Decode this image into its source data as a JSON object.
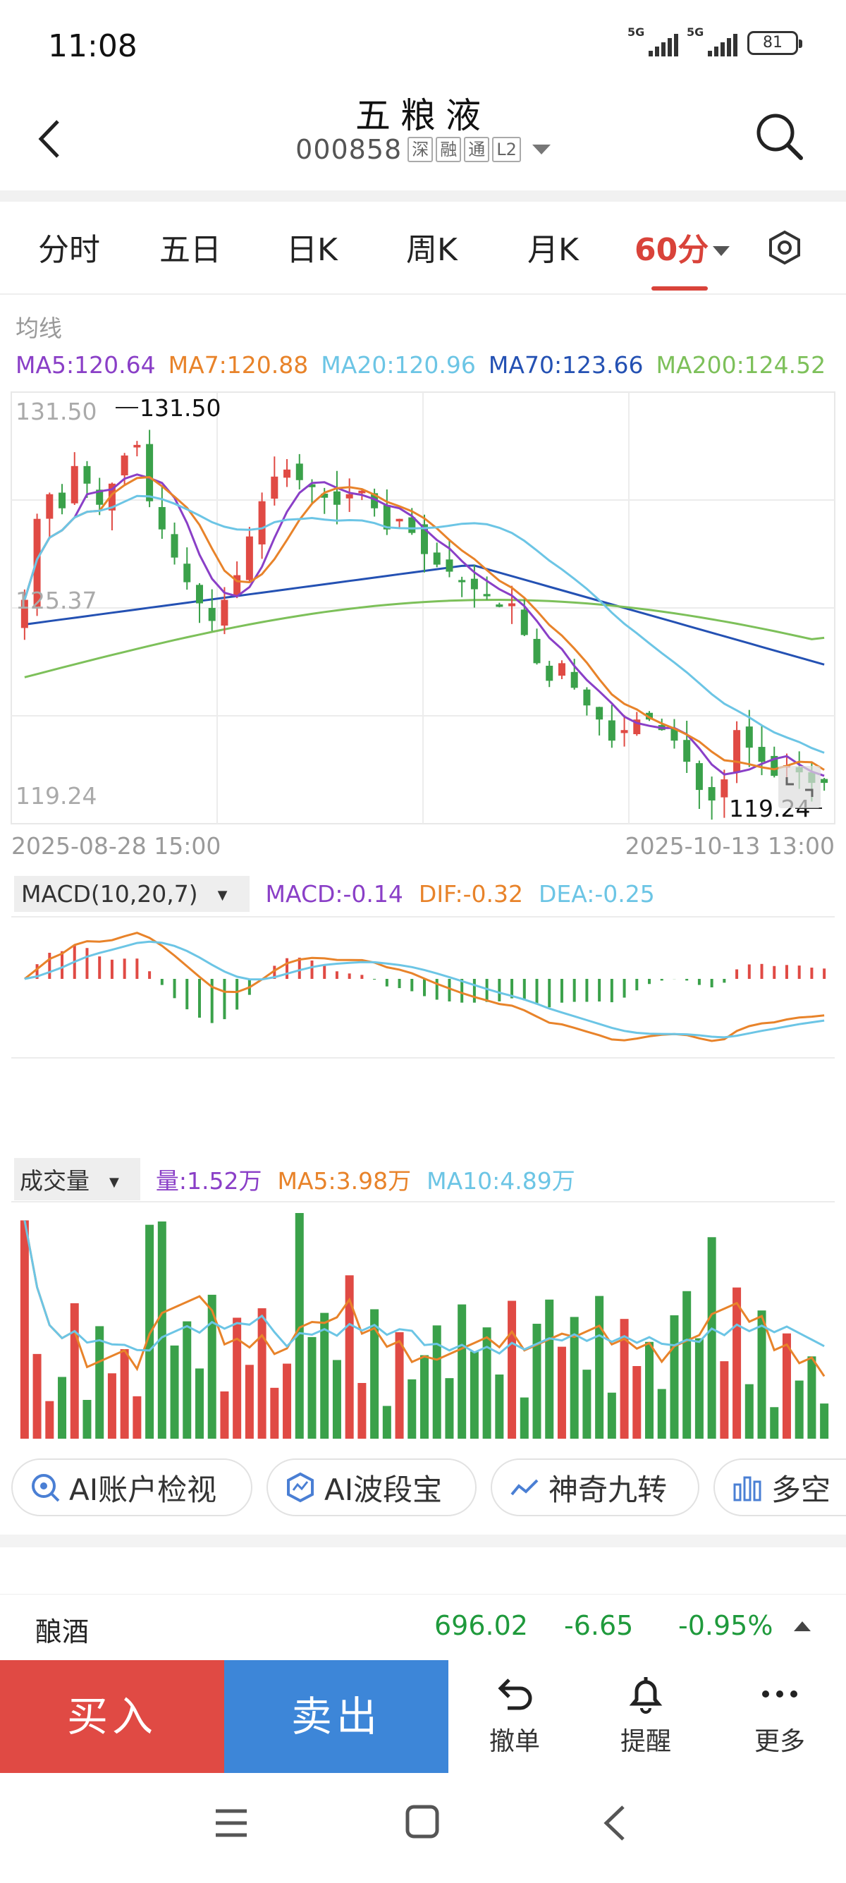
{
  "status_bar": {
    "time": "11:08",
    "network1": "5G",
    "network2": "5G",
    "battery": "81"
  },
  "header": {
    "title": "五粮液",
    "code": "000858",
    "tags": [
      "深",
      "融",
      "通",
      "L2"
    ]
  },
  "tabs": [
    {
      "label": "分时",
      "active": false
    },
    {
      "label": "五日",
      "active": false
    },
    {
      "label": "日K",
      "active": false
    },
    {
      "label": "周K",
      "active": false
    },
    {
      "label": "月K",
      "active": false
    },
    {
      "label": "60分",
      "active": true
    }
  ],
  "ma_legend": {
    "title": "均线",
    "items": [
      {
        "label": "MA5:120.64",
        "color": "#8a3fc7"
      },
      {
        "label": "MA7:120.88",
        "color": "#e8832a"
      },
      {
        "label": "MA20:120.96",
        "color": "#6cc5e5"
      },
      {
        "label": "MA70:123.66",
        "color": "#2451b3"
      },
      {
        "label": "MA200:124.52",
        "color": "#7dc05a"
      }
    ]
  },
  "price_axis": {
    "high": "131.50",
    "mid": "125.37",
    "low": "119.24",
    "high_marker": "131.50",
    "low_marker": "119.24"
  },
  "date_range": {
    "start": "2025-08-28 15:00",
    "end": "2025-10-13 13:00"
  },
  "macd": {
    "selector": "MACD(10,20,7)",
    "macd": "MACD:-0.14",
    "dif": "DIF:-0.32",
    "dea": "DEA:-0.25"
  },
  "volume": {
    "selector": "成交量",
    "vol": "量:1.52万",
    "ma5": "MA5:3.98万",
    "ma10": "MA10:4.89万"
  },
  "feature_buttons": [
    "AI账户检视",
    "AI波段宝",
    "神奇九转",
    "多空"
  ],
  "sector": {
    "name": "酿酒",
    "value": "696.02",
    "change": "-6.65",
    "percent": "-0.95%"
  },
  "actions": {
    "buy": "买入",
    "sell": "卖出",
    "cancel": "撤单",
    "remind": "提醒",
    "more": "更多"
  },
  "colors": {
    "up": "#e04a44",
    "down": "#3aa14a",
    "active_tab": "#d9433a",
    "sell": "#3d86d8"
  },
  "chart_data": [
    {
      "type": "candlestick",
      "title": "",
      "x_range": [
        "2025-08-28 15:00",
        "2025-10-13 13:00"
      ],
      "ylim": [
        119.24,
        131.5
      ],
      "y_ticks": [
        "131.50",
        "125.37",
        "119.24"
      ],
      "annotations": [
        "131.50",
        "119.24"
      ],
      "series": [
        {
          "name": "MA5",
          "value": 120.64
        },
        {
          "name": "MA7",
          "value": 120.88
        },
        {
          "name": "MA20",
          "value": 120.96
        },
        {
          "name": "MA70",
          "value": 123.66
        },
        {
          "name": "MA200",
          "value": 124.52
        }
      ],
      "close": [
        125.6,
        127.9,
        128.6,
        128.2,
        129.4,
        128.9,
        128.3,
        128.9,
        129.7,
        130.0,
        128.4,
        127.6,
        126.8,
        126.1,
        125.5,
        125.0,
        125.6,
        126.3,
        127.4,
        128.4,
        129.1,
        129.3,
        129.0,
        128.8,
        128.5,
        128.3,
        128.6,
        128.7,
        128.2,
        127.6,
        127.9,
        127.5,
        126.9,
        126.6,
        126.4,
        126.1,
        125.9,
        125.7,
        125.4,
        125.5,
        124.6,
        123.8,
        123.3,
        123.8,
        123.1,
        122.6,
        122.2,
        121.6,
        121.9,
        122.2,
        122.2,
        121.9,
        121.6,
        121.0,
        120.2,
        119.9,
        120.5,
        121.9,
        121.4,
        121.0,
        120.6,
        120.9,
        120.7,
        120.4,
        120.4
      ]
    },
    {
      "type": "macd",
      "series": [
        {
          "name": "MACD",
          "value": -0.14
        },
        {
          "name": "DIF",
          "value": -0.32
        },
        {
          "name": "DEA",
          "value": -0.25
        }
      ]
    },
    {
      "type": "bar",
      "title": "成交量",
      "series": [
        {
          "name": "量",
          "value": "1.52万"
        },
        {
          "name": "MA5",
          "value": "3.98万"
        },
        {
          "name": "MA10",
          "value": "4.89万"
        }
      ]
    }
  ]
}
